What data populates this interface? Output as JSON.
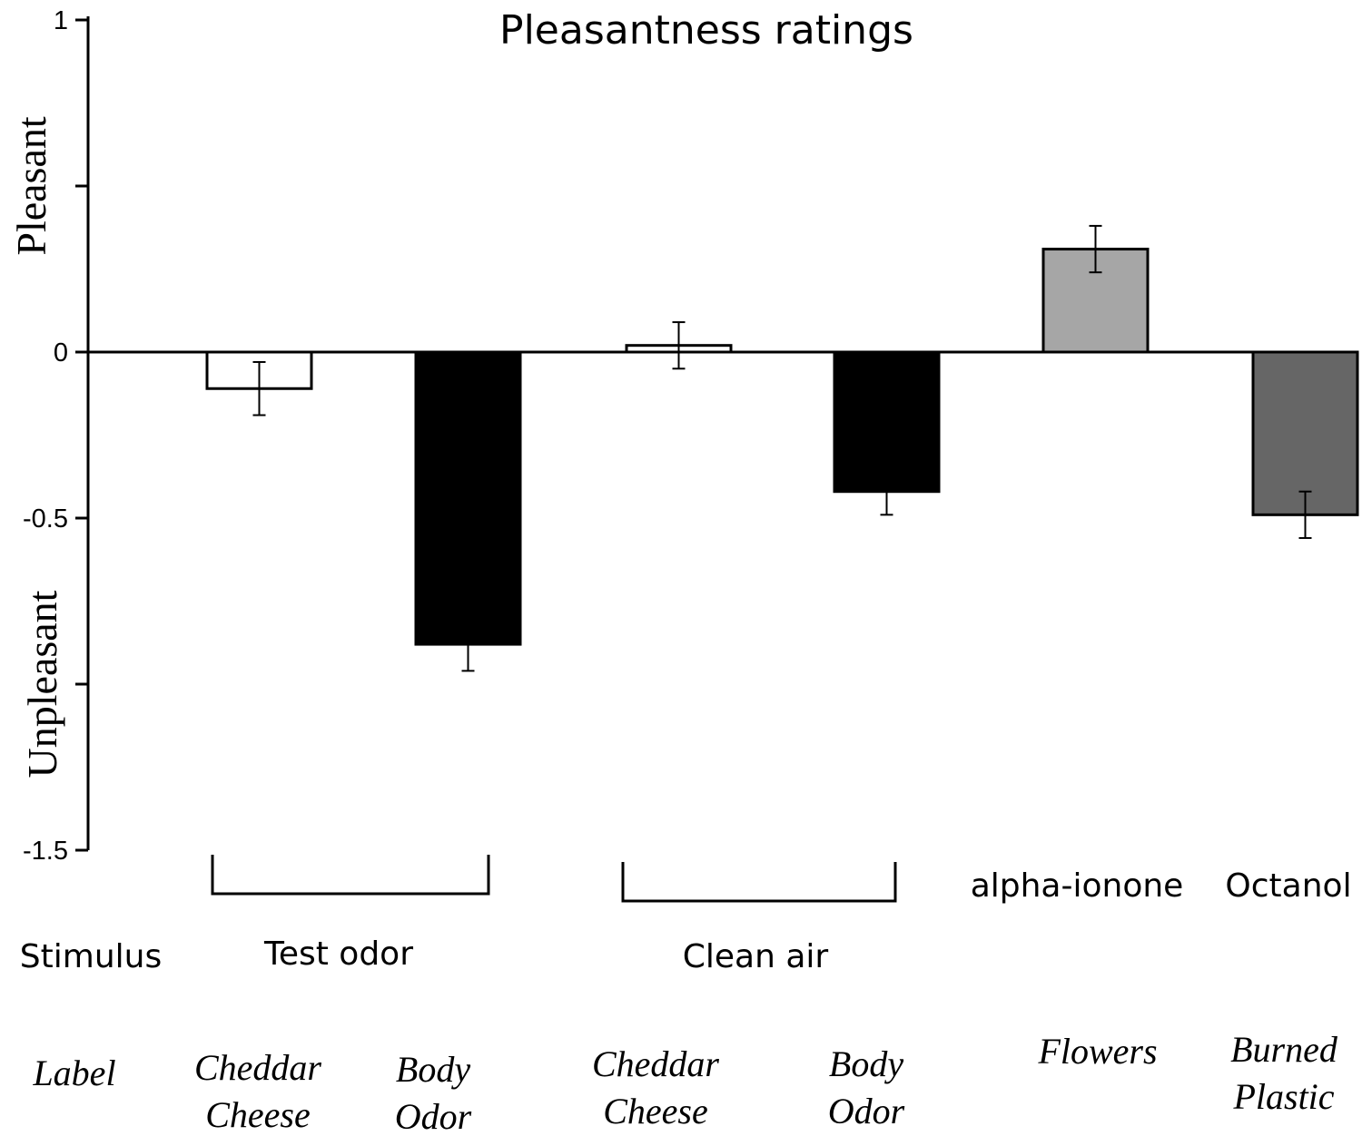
{
  "chart_data": {
    "type": "bar",
    "title": "Pleasantness ratings",
    "ylim": [
      -1.5,
      1
    ],
    "yticks": [
      1,
      0.5,
      0,
      -0.5,
      -1,
      -1.5
    ],
    "ytick_labels": [
      "1",
      "",
      "0",
      "-0.5",
      "",
      "-1.5"
    ],
    "y_side_labels": {
      "upper": "Pleasant",
      "lower": "Unpleasant"
    },
    "row_labels": {
      "stimulus": "Stimulus",
      "label": "Label"
    },
    "bars": [
      {
        "stimulus_group": "Test odor",
        "label_lines": [
          "Cheddar",
          "Cheese"
        ],
        "value": -0.11,
        "error": 0.08,
        "color": "#ffffff"
      },
      {
        "stimulus_group": "Test odor",
        "label_lines": [
          "Body",
          "Odor"
        ],
        "value": -0.88,
        "error": 0.08,
        "color": "#000000"
      },
      {
        "stimulus_group": "Clean air",
        "label_lines": [
          "Cheddar",
          "Cheese"
        ],
        "value": 0.02,
        "error": 0.07,
        "color": "#ffffff"
      },
      {
        "stimulus_group": "Clean air",
        "label_lines": [
          "Body",
          "Odor"
        ],
        "value": -0.42,
        "error": 0.07,
        "color": "#000000"
      },
      {
        "stimulus_group": "alpha-ionone",
        "label_lines": [
          "Flowers"
        ],
        "value": 0.31,
        "error": 0.07,
        "color": "#a6a6a6"
      },
      {
        "stimulus_group": "Octanol",
        "label_lines": [
          "Burned",
          "Plastic"
        ],
        "value": -0.49,
        "error": 0.07,
        "color": "#666666"
      }
    ],
    "stimulus_groups": [
      {
        "name": "Test odor",
        "bracket": true
      },
      {
        "name": "Clean air",
        "bracket": true
      },
      {
        "name": "alpha-ionone",
        "bracket": false
      },
      {
        "name": "Octanol",
        "bracket": false
      }
    ]
  }
}
